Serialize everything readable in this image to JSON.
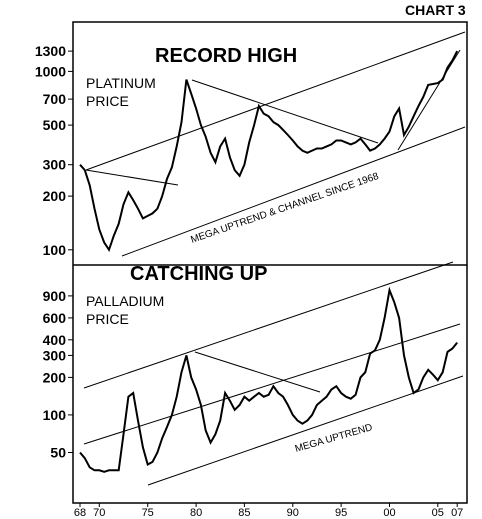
{
  "label": "CHART 3",
  "x_ticks": [
    "68",
    "70",
    "75",
    "80",
    "85",
    "90",
    "95",
    "00",
    "05",
    "07"
  ],
  "x_tick_values": [
    1968,
    1970,
    1975,
    1980,
    1985,
    1990,
    1995,
    2000,
    2005,
    2007
  ],
  "chart_data": [
    {
      "type": "line",
      "title": "RECORD HIGH",
      "series_label_line1": "PLATINUM",
      "series_label_line2": "PRICE",
      "annotation": "MEGA UPTREND & CHANNEL SINCE 1968",
      "yscale": "log",
      "ylim": [
        90,
        1500
      ],
      "y_ticks": [
        100,
        200,
        300,
        500,
        700,
        1000,
        1300
      ],
      "xlim": [
        1968,
        2007.5
      ],
      "x": [
        1968.0,
        1968.5,
        1969.0,
        1969.5,
        1970.0,
        1970.5,
        1971.0,
        1971.5,
        1972.0,
        1972.5,
        1973.0,
        1973.5,
        1974.0,
        1974.5,
        1975.0,
        1975.5,
        1976.0,
        1976.5,
        1977.0,
        1977.5,
        1978.0,
        1978.5,
        1979.0,
        1979.5,
        1980.0,
        1980.5,
        1981.0,
        1981.5,
        1982.0,
        1982.5,
        1983.0,
        1983.5,
        1984.0,
        1984.5,
        1985.0,
        1985.5,
        1986.0,
        1986.5,
        1987.0,
        1987.5,
        1988.0,
        1988.5,
        1989.0,
        1989.5,
        1990.0,
        1990.5,
        1991.0,
        1991.5,
        1992.0,
        1992.5,
        1993.0,
        1993.5,
        1994.0,
        1994.5,
        1995.0,
        1995.5,
        1996.0,
        1996.5,
        1997.0,
        1997.5,
        1998.0,
        1998.5,
        1999.0,
        1999.5,
        2000.0,
        2000.5,
        2001.0,
        2001.5,
        2002.0,
        2002.5,
        2003.0,
        2003.5,
        2004.0,
        2004.5,
        2005.0,
        2005.5,
        2006.0,
        2006.5,
        2007.0
      ],
      "y": [
        300,
        280,
        230,
        170,
        130,
        110,
        100,
        120,
        140,
        180,
        210,
        190,
        170,
        150,
        155,
        160,
        170,
        200,
        250,
        290,
        380,
        520,
        900,
        750,
        620,
        500,
        430,
        350,
        310,
        380,
        420,
        330,
        280,
        260,
        300,
        400,
        500,
        640,
        580,
        560,
        520,
        500,
        470,
        440,
        410,
        380,
        360,
        350,
        360,
        370,
        370,
        380,
        390,
        410,
        410,
        400,
        390,
        400,
        420,
        390,
        360,
        370,
        390,
        420,
        460,
        560,
        620,
        440,
        490,
        560,
        640,
        720,
        840,
        850,
        860,
        900,
        1050,
        1150,
        1300
      ]
    },
    {
      "type": "line",
      "title": "CATCHING UP",
      "series_label_line1": "PALLADIUM",
      "series_label_line2": "PRICE",
      "annotation": "MEGA UPTREND",
      "yscale": "log",
      "ylim": [
        25,
        1300
      ],
      "y_ticks": [
        50,
        100,
        200,
        300,
        400,
        600,
        900
      ],
      "xlim": [
        1968,
        2007.5
      ],
      "x": [
        1968.0,
        1968.5,
        1969.0,
        1969.5,
        1970.0,
        1970.5,
        1971.0,
        1971.5,
        1972.0,
        1972.5,
        1973.0,
        1973.5,
        1974.0,
        1974.5,
        1975.0,
        1975.5,
        1976.0,
        1976.5,
        1977.0,
        1977.5,
        1978.0,
        1978.5,
        1979.0,
        1979.5,
        1980.0,
        1980.5,
        1981.0,
        1981.5,
        1982.0,
        1982.5,
        1983.0,
        1983.5,
        1984.0,
        1984.5,
        1985.0,
        1985.5,
        1986.0,
        1986.5,
        1987.0,
        1987.5,
        1988.0,
        1988.5,
        1989.0,
        1989.5,
        1990.0,
        1990.5,
        1991.0,
        1991.5,
        1992.0,
        1992.5,
        1993.0,
        1993.5,
        1994.0,
        1994.5,
        1995.0,
        1995.5,
        1996.0,
        1996.5,
        1997.0,
        1997.5,
        1998.0,
        1998.5,
        1999.0,
        1999.5,
        2000.0,
        2000.5,
        2001.0,
        2001.5,
        2002.0,
        2002.5,
        2003.0,
        2003.5,
        2004.0,
        2004.5,
        2005.0,
        2005.5,
        2006.0,
        2006.5,
        2007.0
      ],
      "y": [
        50,
        45,
        38,
        36,
        36,
        35,
        36,
        36,
        36,
        70,
        140,
        150,
        90,
        55,
        40,
        42,
        50,
        65,
        80,
        100,
        140,
        220,
        300,
        200,
        160,
        120,
        75,
        60,
        70,
        90,
        150,
        130,
        110,
        120,
        140,
        130,
        140,
        150,
        140,
        145,
        170,
        150,
        140,
        120,
        100,
        90,
        85,
        90,
        100,
        120,
        130,
        140,
        160,
        170,
        150,
        140,
        135,
        145,
        200,
        220,
        310,
        330,
        400,
        600,
        1000,
        800,
        600,
        300,
        200,
        150,
        160,
        200,
        230,
        210,
        190,
        220,
        320,
        340,
        380
      ]
    }
  ]
}
